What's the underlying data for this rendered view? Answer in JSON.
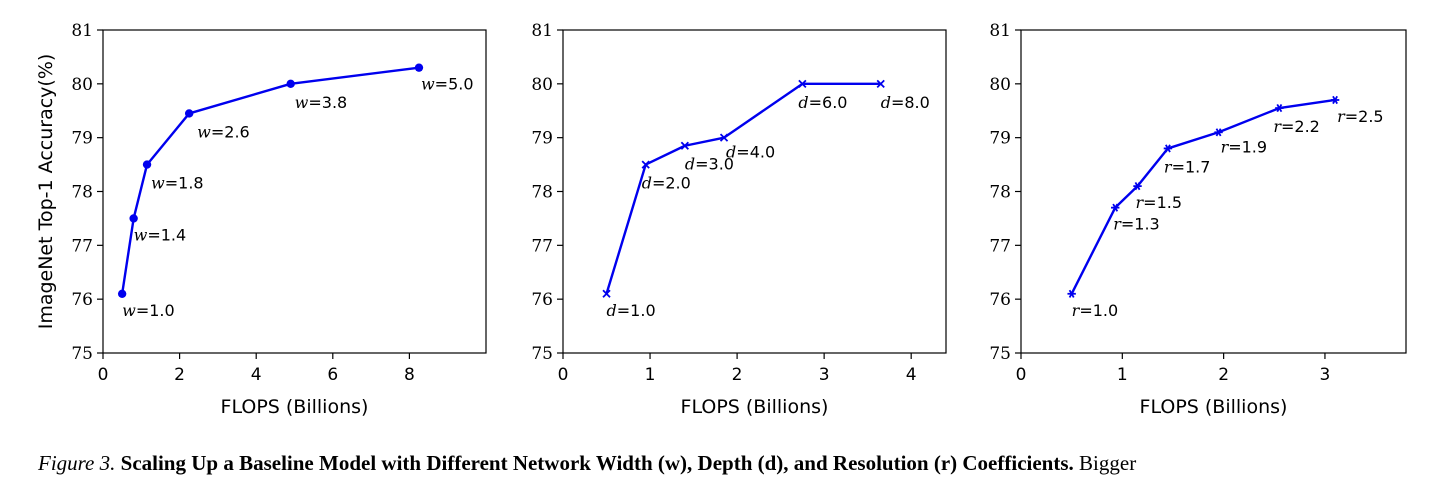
{
  "chart_data": [
    {
      "type": "line",
      "variable": "w",
      "marker": "circle",
      "color": "#0000ee",
      "xlabel": "FLOPS (Billions)",
      "ylabel": "ImageNet Top-1 Accuracy(%)",
      "xlim": [
        0,
        10
      ],
      "ylim": [
        75,
        81
      ],
      "xticks": [
        "0",
        "2",
        "4",
        "6",
        "8"
      ],
      "xtick_values": [
        0,
        2,
        4,
        6,
        8
      ],
      "yticks": [
        "75",
        "76",
        "77",
        "78",
        "79",
        "80",
        "81"
      ],
      "series": [
        {
          "x": [
            0.5,
            0.8,
            1.15,
            2.25,
            4.9,
            8.25
          ],
          "y": [
            76.1,
            77.5,
            78.5,
            79.45,
            80.0,
            80.3
          ],
          "labels": [
            "=1.0",
            "=1.4",
            "=1.8",
            "=2.6",
            "=3.8",
            "=5.0"
          ]
        }
      ]
    },
    {
      "type": "line",
      "variable": "d",
      "marker": "x",
      "color": "#0000ee",
      "xlabel": "FLOPS (Billions)",
      "ylabel": "",
      "xlim": [
        0,
        4.4
      ],
      "ylim": [
        75,
        81
      ],
      "xticks": [
        "0",
        "1",
        "2",
        "3",
        "4"
      ],
      "xtick_values": [
        0,
        1,
        2,
        3,
        4
      ],
      "yticks": [
        "75",
        "76",
        "77",
        "78",
        "79",
        "80",
        "81"
      ],
      "series": [
        {
          "x": [
            0.5,
            0.95,
            1.4,
            1.85,
            2.75,
            3.65
          ],
          "y": [
            76.1,
            78.5,
            78.85,
            79.0,
            80.0,
            80.0
          ],
          "labels": [
            "=1.0",
            "=2.0",
            "=3.0",
            "=4.0",
            "=6.0",
            "=8.0"
          ]
        }
      ]
    },
    {
      "type": "line",
      "variable": "r",
      "marker": "star",
      "color": "#0000ee",
      "xlabel": "FLOPS (Billions)",
      "ylabel": "",
      "xlim": [
        0,
        3.8
      ],
      "ylim": [
        75,
        81
      ],
      "xticks": [
        "0",
        "1",
        "2",
        "3"
      ],
      "xtick_values": [
        0,
        1,
        2,
        3
      ],
      "yticks": [
        "75",
        "76",
        "77",
        "78",
        "79",
        "80",
        "81"
      ],
      "series": [
        {
          "x": [
            0.5,
            0.93,
            1.15,
            1.45,
            1.95,
            2.55,
            3.1
          ],
          "y": [
            76.1,
            77.7,
            78.1,
            78.8,
            79.1,
            79.55,
            79.7
          ],
          "labels": [
            "=1.0",
            "=1.3",
            "=1.5",
            "=1.7",
            "=1.9",
            "=2.2",
            "=2.5"
          ]
        }
      ]
    }
  ],
  "caption": {
    "figure_label": "Figure 3.",
    "bold_text": "Scaling Up a Baseline Model with Different Network Width (w), Depth (d), and Resolution (r) Coefficients.",
    "rest_text": "Bigger"
  }
}
